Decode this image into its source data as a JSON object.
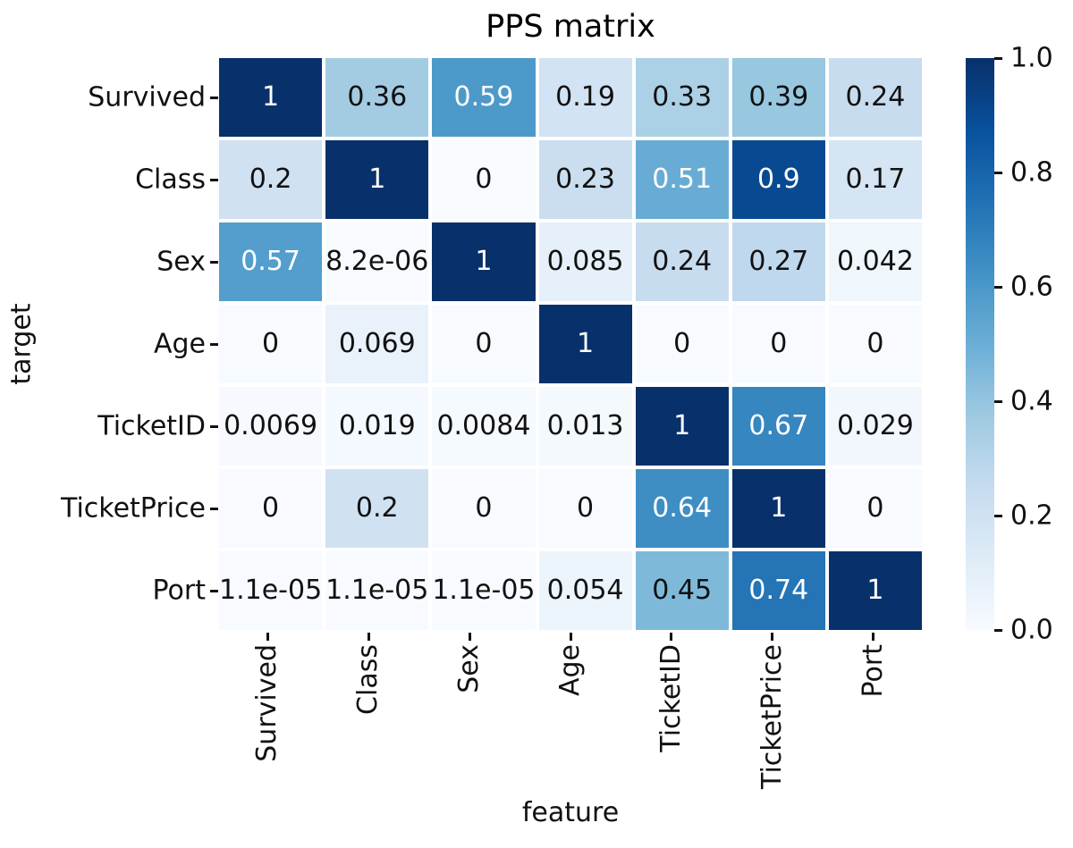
{
  "chart_data": {
    "type": "heatmap",
    "title": "PPS matrix",
    "xlabel": "feature",
    "ylabel": "target",
    "columns": [
      "Survived",
      "Class",
      "Sex",
      "Age",
      "TicketID",
      "TicketPrice",
      "Port"
    ],
    "rows": [
      "Survived",
      "Class",
      "Sex",
      "Age",
      "TicketID",
      "TicketPrice",
      "Port"
    ],
    "values": [
      [
        "1",
        "0.36",
        "0.59",
        "0.19",
        "0.33",
        "0.39",
        "0.24"
      ],
      [
        "0.2",
        "1",
        "0",
        "0.23",
        "0.51",
        "0.9",
        "0.17"
      ],
      [
        "0.57",
        "8.2e-06",
        "1",
        "0.085",
        "0.24",
        "0.27",
        "0.042"
      ],
      [
        "0",
        "0.069",
        "0",
        "1",
        "0",
        "0",
        "0"
      ],
      [
        "0.0069",
        "0.019",
        "0.0084",
        "0.013",
        "1",
        "0.67",
        "0.029"
      ],
      [
        "0",
        "0.2",
        "0",
        "0",
        "0.64",
        "1",
        "0"
      ],
      [
        "1.1e-05",
        "1.1e-05",
        "1.1e-05",
        "0.054",
        "0.45",
        "0.74",
        "1"
      ]
    ],
    "vmin": 0,
    "vmax": 1,
    "colormap": "Blues",
    "colormap_stops": [
      [
        247,
        251,
        255
      ],
      [
        222,
        235,
        247
      ],
      [
        198,
        219,
        239
      ],
      [
        158,
        202,
        225
      ],
      [
        107,
        174,
        214
      ],
      [
        66,
        146,
        198
      ],
      [
        33,
        113,
        181
      ],
      [
        8,
        81,
        156
      ],
      [
        8,
        48,
        107
      ]
    ],
    "colorbar_ticks": [
      "1.0",
      "0.8",
      "0.6",
      "0.4",
      "0.2",
      "0.0"
    ],
    "annot_color_dark": "#111111",
    "annot_color_light": "#ffffff",
    "legend_position": "right-colorbar",
    "grid_line_color": "#ffffff"
  }
}
